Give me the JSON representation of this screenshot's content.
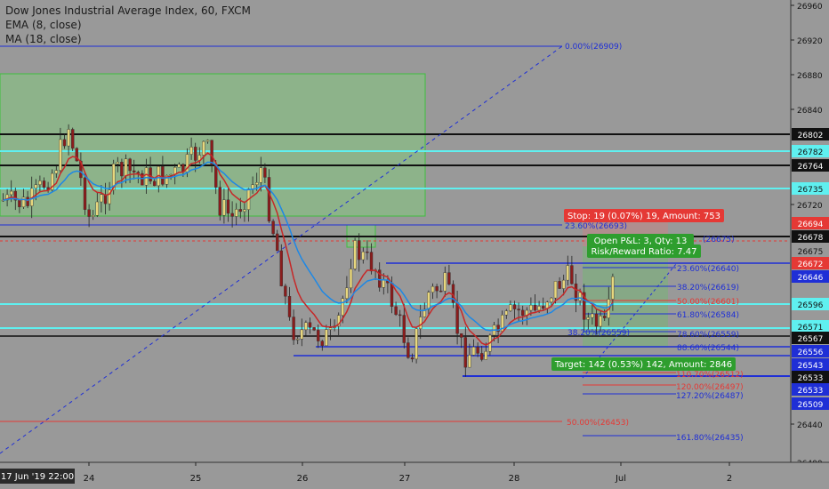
{
  "header": {
    "title": "Dow Jones Industrial Average Index, 60, FXCM",
    "indicator_ema": "EMA (8, close)",
    "indicator_ma": "MA (18, close)"
  },
  "colors": {
    "background": "#999999",
    "up": "#e8d77d",
    "down": "#8a1c1c",
    "ema": "#c62828",
    "ma": "#1e88e5",
    "fib_blue": "#1f2fd6",
    "fib_red": "#e53935",
    "cyan": "#5ff0f0",
    "black_line": "#111111",
    "zone_green": "#8db38a",
    "stop_badge": "#e53935",
    "target_badge": "#2e9e2e",
    "price_badge_blue": "#1f2fd6",
    "price_badge_red": "#e53935",
    "price_badge_black": "#111111",
    "price_badge_cyan": "#5ff0f0"
  },
  "chart_data": {
    "type": "candlestick",
    "symbol": "Dow Jones Industrial Average Index",
    "timeframe": "60",
    "source": "FXCM",
    "grid": false,
    "y_axis": {
      "side": "right",
      "range": [
        26400,
        26970
      ],
      "ticks": [
        26960,
        26920,
        26880,
        26840,
        26720,
        26440,
        26400
      ]
    },
    "x_axis": {
      "current_label": "17 Jun '19  22:00",
      "ticks": [
        "24",
        "25",
        "26",
        "27",
        "28",
        "Jul",
        "2"
      ]
    },
    "price_badges": [
      {
        "value": "26802",
        "style": "black"
      },
      {
        "value": "26782",
        "style": "cyan"
      },
      {
        "value": "26764",
        "style": "black"
      },
      {
        "value": "26735",
        "style": "cyan"
      },
      {
        "value": "26694",
        "style": "red"
      },
      {
        "value": "26678",
        "style": "black"
      },
      {
        "value": "26675",
        "style": "plain"
      },
      {
        "value": "26672",
        "style": "red"
      },
      {
        "value": "26646",
        "style": "blue"
      },
      {
        "value": "26596",
        "style": "cyan"
      },
      {
        "value": "26571",
        "style": "cyan"
      },
      {
        "value": "26567",
        "style": "black"
      },
      {
        "value": "26556",
        "style": "blue"
      },
      {
        "value": "26543",
        "style": "blue"
      },
      {
        "value": "26533",
        "style": "black"
      },
      {
        "value": "26533",
        "style": "blue"
      },
      {
        "value": "26509",
        "style": "blue"
      }
    ],
    "fib_labels_large": [
      {
        "text": "0.00%(26909)",
        "color": "blue"
      },
      {
        "text": "23.60%(26693)",
        "color": "blue"
      },
      {
        "text": "50.00%(26453)",
        "color": "red"
      }
    ],
    "fib_labels_small": [
      {
        "text": "23.60%(26640)",
        "color": "blue"
      },
      {
        "text": "38.20%(26619)",
        "color": "blue"
      },
      {
        "text": "50.00%(26601)",
        "color": "red"
      },
      {
        "text": "61.80%(26584)",
        "color": "blue"
      },
      {
        "text": "78.60%(26559)",
        "color": "blue"
      },
      {
        "text": "88.60%(26544)",
        "color": "blue"
      },
      {
        "text": "110.70%(26512)",
        "color": "red"
      },
      {
        "text": "120.00%(26497)",
        "color": "red"
      },
      {
        "text": "127.20%(26487)",
        "color": "blue"
      },
      {
        "text": "161.80%(26435)",
        "color": "blue"
      }
    ],
    "fib_small_partial": "38.20%(26559)",
    "fib_at_top_line": "(26675)",
    "position": {
      "stop_label": "Stop: 19 (0.07%) 19, Amount: 753",
      "open_pnl_label": "Open P&L: 3, Qty: 13",
      "risk_reward_label": "Risk/Reward Ratio: 7.47",
      "target_label": "Target: 142 (0.53%) 142, Amount: 2846"
    },
    "series": [
      {
        "name": "EMA (8, close)"
      },
      {
        "name": "MA (18, close)"
      }
    ]
  }
}
